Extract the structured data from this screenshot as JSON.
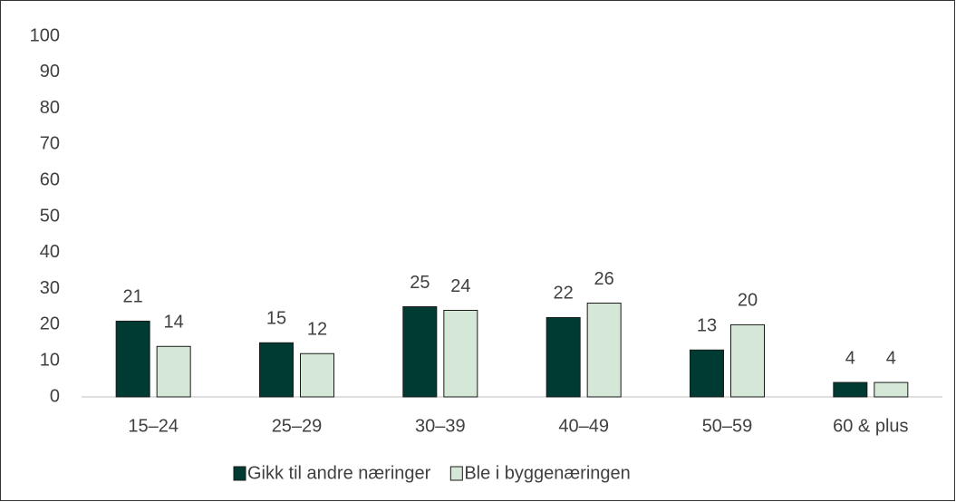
{
  "chart_data": {
    "type": "bar",
    "categories": [
      "15–24",
      "25–29",
      "30–39",
      "40–49",
      "50–59",
      "60 & plus"
    ],
    "series": [
      {
        "name": "Gikk til andre næringer",
        "color": "#003b33",
        "values": [
          21,
          15,
          25,
          22,
          13,
          4
        ]
      },
      {
        "name": "Ble i byggenæringen",
        "color": "#d5e8d8",
        "values": [
          14,
          12,
          24,
          26,
          20,
          4
        ]
      }
    ],
    "ylim": [
      0,
      100
    ],
    "yticks": [
      0,
      10,
      20,
      30,
      40,
      50,
      60,
      70,
      80,
      90,
      100
    ],
    "grid": false,
    "legend": "bottom"
  }
}
